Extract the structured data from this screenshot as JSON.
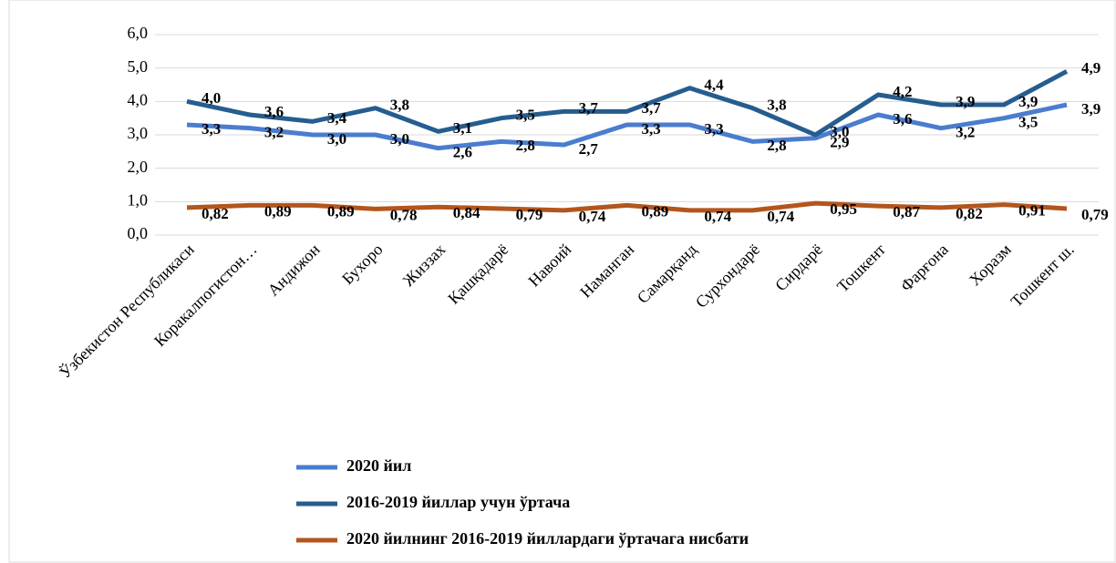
{
  "chart_data": {
    "type": "line",
    "categories": [
      "Ўзбекистон Республикаси",
      "Коракалпогистон…",
      "Андижон",
      "Бухоро",
      "Жиззах",
      "Қашқадарё",
      "Навоий",
      "Наманган",
      "Самарқанд",
      "Сурхондарё",
      "Сирдарё",
      "Тошкент",
      "Фарғона",
      "Хоразм",
      "Тошкент ш."
    ],
    "series": [
      {
        "name": "2020 йил",
        "color": "#4a7dcf",
        "values": [
          3.3,
          3.2,
          3.0,
          3.0,
          2.6,
          2.8,
          2.7,
          3.3,
          3.3,
          2.8,
          2.9,
          3.6,
          3.2,
          3.5,
          3.9
        ],
        "value_labels": [
          "3,3",
          "3,2",
          "3,0",
          "3,0",
          "2,6",
          "2,8",
          "2,7",
          "3,3",
          "3,3",
          "2,8",
          "2,9",
          "3,6",
          "3,2",
          "3,5",
          "3,9"
        ]
      },
      {
        "name": "2016-2019 йиллар учун ўртача",
        "color": "#265d8f",
        "values": [
          4.0,
          3.6,
          3.4,
          3.8,
          3.1,
          3.5,
          3.7,
          3.7,
          4.4,
          3.8,
          3.0,
          4.2,
          3.9,
          3.9,
          4.9
        ],
        "value_labels": [
          "4,0",
          "3,6",
          "3,4",
          "3,8",
          "3,1",
          "3,5",
          "3,7",
          "3,7",
          "4,4",
          "3,8",
          "3,0",
          "4,2",
          "3,9",
          "3,9",
          "4,9"
        ]
      },
      {
        "name": "2020 йилнинг 2016-2019 йиллардаги ўртачага нисбати",
        "color": "#b3561c",
        "values": [
          0.82,
          0.89,
          0.89,
          0.78,
          0.84,
          0.79,
          0.74,
          0.89,
          0.74,
          0.74,
          0.95,
          0.87,
          0.82,
          0.91,
          0.79
        ],
        "value_labels": [
          "0,82",
          "0,89",
          "0,89",
          "0,78",
          "0,84",
          "0,79",
          "0,74",
          "0,89",
          "0,74",
          "0,74",
          "0,95",
          "0,87",
          "0,82",
          "0,91",
          "0,79"
        ]
      }
    ],
    "ylim": [
      0,
      6
    ],
    "yticks": [
      {
        "value": 0,
        "label": "0,0"
      },
      {
        "value": 1,
        "label": "1,0"
      },
      {
        "value": 2,
        "label": "2,0"
      },
      {
        "value": 3,
        "label": "3,0"
      },
      {
        "value": 4,
        "label": "4,0"
      },
      {
        "value": 5,
        "label": "5,0"
      },
      {
        "value": 6,
        "label": "6,0"
      }
    ],
    "grid": true
  }
}
